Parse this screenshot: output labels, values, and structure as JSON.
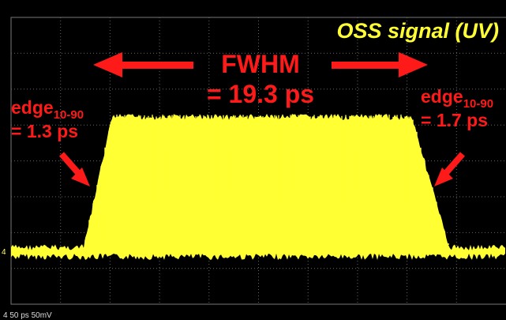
{
  "screen": {
    "title": "OSS signal (UV)",
    "fwhm": {
      "label": "FWHM",
      "value": "= 19.3 ps"
    },
    "edge_left": {
      "label": "edge",
      "subscript": "10-90",
      "value": "= 1.3 ps"
    },
    "edge_right": {
      "label": "edge",
      "subscript": "10-90",
      "value": "= 1.7 ps"
    },
    "channel_marker": "4",
    "status": "4 50 ps 50mV"
  }
}
